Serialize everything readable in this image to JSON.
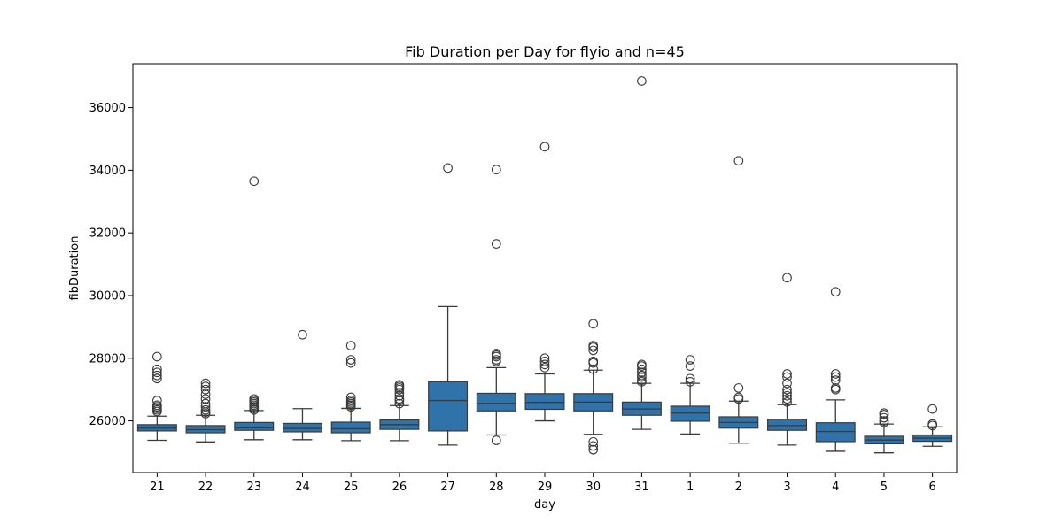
{
  "chart_data": {
    "type": "box",
    "title": "Fib Duration per Day for flyio and n=45",
    "xlabel": "day",
    "ylabel": "fibDuration",
    "ylim": [
      24350,
      37400
    ],
    "yticks": [
      26000,
      28000,
      30000,
      32000,
      34000,
      36000
    ],
    "grid": false,
    "color": "#2f73aa",
    "categories": [
      "21",
      "22",
      "23",
      "24",
      "25",
      "26",
      "27",
      "28",
      "29",
      "30",
      "31",
      "1",
      "2",
      "3",
      "4",
      "5",
      "6"
    ],
    "boxes": [
      {
        "day": "21",
        "q1": 25680,
        "median": 25770,
        "q3": 25880,
        "whisker_low": 25380,
        "whisker_high": 26150,
        "outliers": [
          26300,
          26350,
          26400,
          26450,
          26500,
          26650,
          27350,
          27450,
          27550,
          27650,
          28050
        ]
      },
      {
        "day": "22",
        "q1": 25620,
        "median": 25720,
        "q3": 25850,
        "whisker_low": 25330,
        "whisker_high": 26180,
        "outliers": [
          26230,
          26280,
          26350,
          26450,
          26550,
          26700,
          26850,
          27000,
          27100,
          27200
        ]
      },
      {
        "day": "23",
        "q1": 25700,
        "median": 25780,
        "q3": 25950,
        "whisker_low": 25400,
        "whisker_high": 26330,
        "outliers": [
          26350,
          26400,
          26450,
          26500,
          26550,
          26600,
          26650,
          26700,
          33650
        ]
      },
      {
        "day": "24",
        "q1": 25650,
        "median": 25760,
        "q3": 25920,
        "whisker_low": 25400,
        "whisker_high": 26390,
        "outliers": [
          28750
        ]
      },
      {
        "day": "25",
        "q1": 25620,
        "median": 25750,
        "q3": 25960,
        "whisker_low": 25370,
        "whisker_high": 26400,
        "outliers": [
          26450,
          26500,
          26550,
          26600,
          26650,
          26750,
          27850,
          27950,
          28400
        ]
      },
      {
        "day": "26",
        "q1": 25730,
        "median": 25880,
        "q3": 26030,
        "whisker_low": 25370,
        "whisker_high": 26490,
        "outliers": [
          26550,
          26650,
          26700,
          26800,
          26900,
          27000,
          27050,
          27100,
          27150
        ]
      },
      {
        "day": "27",
        "q1": 25680,
        "median": 26650,
        "q3": 27250,
        "whisker_low": 25230,
        "whisker_high": 29650,
        "outliers": [
          34070
        ]
      },
      {
        "day": "28",
        "q1": 26320,
        "median": 26560,
        "q3": 26880,
        "whisker_low": 25550,
        "whisker_high": 27700,
        "outliers": [
          25380,
          27900,
          27950,
          28050,
          28100,
          28150,
          31650,
          34020
        ]
      },
      {
        "day": "29",
        "q1": 26370,
        "median": 26590,
        "q3": 26870,
        "whisker_low": 26000,
        "whisker_high": 27500,
        "outliers": [
          27700,
          27800,
          27900,
          28000,
          34750
        ]
      },
      {
        "day": "30",
        "q1": 26320,
        "median": 26600,
        "q3": 26870,
        "whisker_low": 25570,
        "whisker_high": 27620,
        "outliers": [
          25080,
          25200,
          25330,
          27650,
          27850,
          27900,
          28250,
          28350,
          28400,
          29100
        ]
      },
      {
        "day": "31",
        "q1": 26180,
        "median": 26380,
        "q3": 26600,
        "whisker_low": 25730,
        "whisker_high": 27200,
        "outliers": [
          27250,
          27300,
          27400,
          27450,
          27550,
          27650,
          27750,
          27800,
          36850
        ]
      },
      {
        "day": "1",
        "q1": 25990,
        "median": 26250,
        "q3": 26470,
        "whisker_low": 25580,
        "whisker_high": 27200,
        "outliers": [
          27250,
          27350,
          27750,
          27950
        ]
      },
      {
        "day": "2",
        "q1": 25770,
        "median": 25950,
        "q3": 26130,
        "whisker_low": 25290,
        "whisker_high": 26630,
        "outliers": [
          26700,
          26750,
          27050,
          34300
        ]
      },
      {
        "day": "3",
        "q1": 25700,
        "median": 25850,
        "q3": 26050,
        "whisker_low": 25230,
        "whisker_high": 26520,
        "outliers": [
          26600,
          26700,
          26800,
          26900,
          27000,
          27200,
          27400,
          27500,
          30570
        ]
      },
      {
        "day": "4",
        "q1": 25340,
        "median": 25660,
        "q3": 25940,
        "whisker_low": 25030,
        "whisker_high": 26670,
        "outliers": [
          27000,
          27050,
          27300,
          27400,
          27500,
          30120
        ]
      },
      {
        "day": "5",
        "q1": 25270,
        "median": 25390,
        "q3": 25510,
        "whisker_low": 24980,
        "whisker_high": 25900,
        "outliers": [
          25950,
          26000,
          26100,
          26200,
          26250
        ]
      },
      {
        "day": "6",
        "q1": 25350,
        "median": 25450,
        "q3": 25550,
        "whisker_low": 25190,
        "whisker_high": 25810,
        "outliers": [
          25850,
          25900,
          26380
        ]
      }
    ]
  }
}
